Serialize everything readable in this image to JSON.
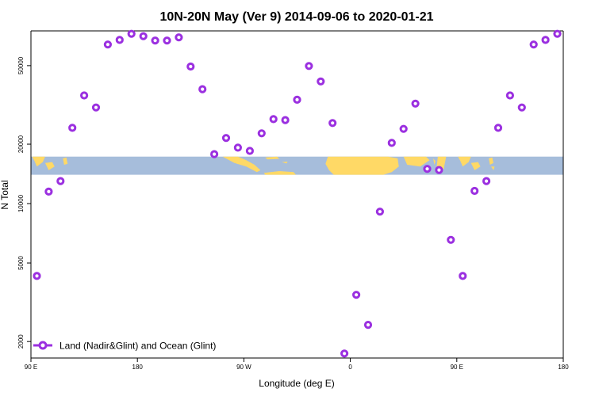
{
  "chart_data": {
    "type": "scatter",
    "title": "10N-20N May (Ver 9)   2014-09-06 to 2020-01-21",
    "xlabel": "Longitude (deg E)",
    "ylabel": "N Total",
    "y_scale": "log",
    "xlim": [
      90,
      540
    ],
    "ylim": [
      1650,
      75000
    ],
    "x_ticks": [
      {
        "value": 90,
        "label": "90 E"
      },
      {
        "value": 180,
        "label": "180"
      },
      {
        "value": 270,
        "label": "90 W"
      },
      {
        "value": 360,
        "label": "0"
      },
      {
        "value": 450,
        "label": "90 E"
      },
      {
        "value": 540,
        "label": "180"
      }
    ],
    "y_ticks": [
      {
        "value": 2000,
        "label": "2000"
      },
      {
        "value": 5000,
        "label": "5000"
      },
      {
        "value": 10000,
        "label": "10000"
      },
      {
        "value": 20000,
        "label": "20000"
      },
      {
        "value": 50000,
        "label": "50000"
      }
    ],
    "grid": false,
    "legend_position": "bottom-left",
    "map_band": {
      "y_range": [
        14000,
        17300
      ],
      "ocean_color": "#a6bddb",
      "land_color": "#ffd966"
    },
    "series": [
      {
        "name": "Land (Nadir&Glint) and Ocean (Glint)",
        "color": "#9b30e0",
        "x": [
          95,
          105,
          115,
          125,
          135,
          145,
          155,
          165,
          175,
          185,
          195,
          205,
          215,
          225,
          235,
          245,
          255,
          265,
          275,
          285,
          295,
          305,
          315,
          325,
          335,
          345,
          355,
          365,
          375,
          385,
          395,
          405,
          415,
          425,
          435,
          445,
          455,
          465,
          475,
          485,
          495,
          505,
          515,
          525,
          535
        ],
        "y": [
          4300,
          11500,
          13000,
          24200,
          35300,
          30700,
          64000,
          67500,
          72500,
          70500,
          67000,
          67000,
          69500,
          49500,
          38000,
          17800,
          21500,
          19200,
          18500,
          22700,
          26800,
          26500,
          33600,
          49800,
          41600,
          25600,
          1740,
          3450,
          2430,
          9100,
          20300,
          23900,
          32100,
          15000,
          14800,
          6550,
          4300,
          11600,
          13000,
          24200,
          35300,
          30700,
          64000,
          67500,
          72500
        ]
      }
    ]
  }
}
